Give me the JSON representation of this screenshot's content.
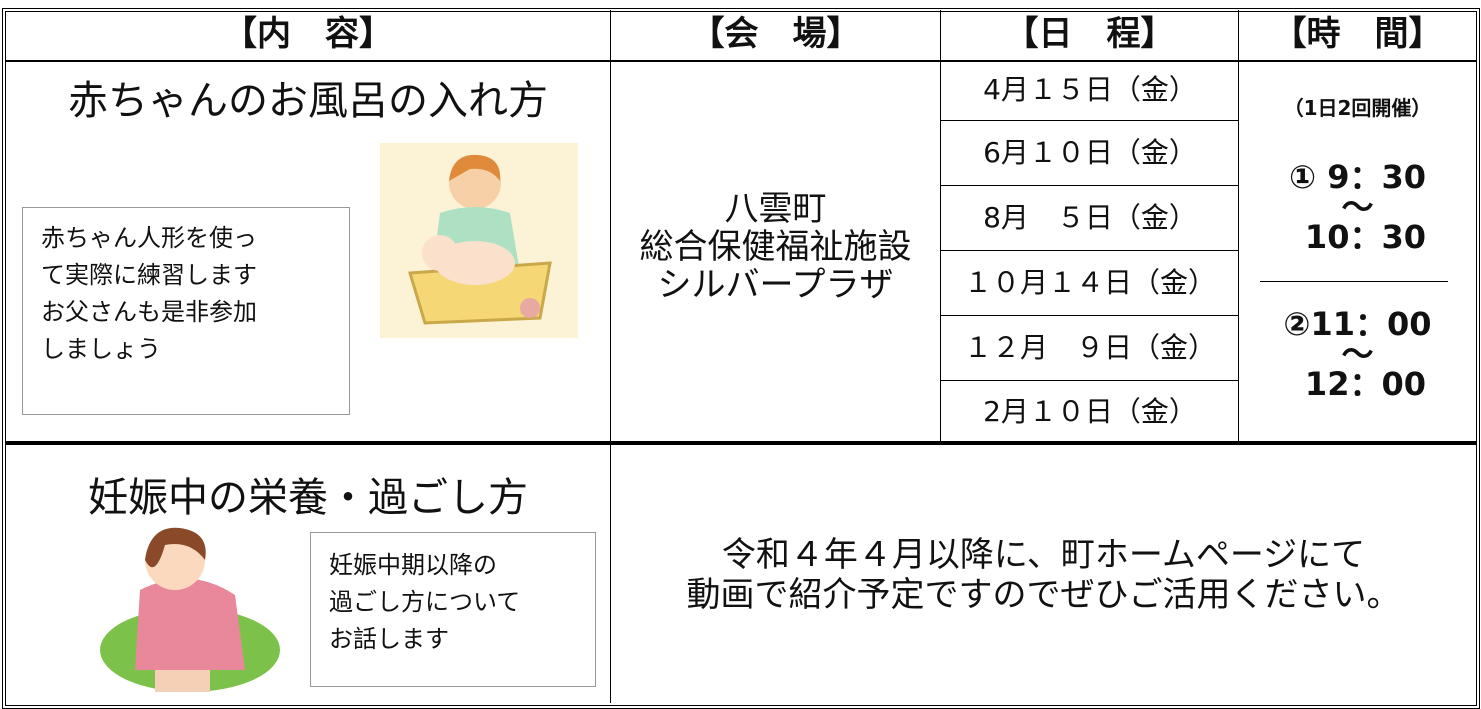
{
  "header": [
    "【内　容】",
    "【会　場】",
    "【日　程】",
    "【時　間】"
  ],
  "rows": [
    {
      "title": "赤ちゃんのお風呂の入れ方",
      "note": [
        "赤ちゃん人形を使っ",
        "て実際に練習します",
        "お父さんも是非参加",
        "しましょう"
      ],
      "venue": [
        "八雲町",
        "総合保健福祉施設",
        "シルバープラザ"
      ],
      "dates": [
        "4月１５日（金）",
        "6月１０日（金）",
        "8月　５日（金）",
        "１０月１４日（金）",
        "１２月　９日（金）",
        "2月１０日（金）"
      ],
      "time": {
        "note": "（1日2回開催）",
        "session1": [
          "① 9：30",
          "～",
          "10：30"
        ],
        "session2": [
          "②11：00",
          "～",
          "12：00"
        ]
      }
    },
    {
      "title": "妊娠中の栄養・過ごし方",
      "note": [
        "妊娠中期以降の",
        "過ごし方について",
        "お話します"
      ],
      "message": [
        "令和４年４月以降に、町ホームページにて",
        "動画で紹介予定ですのでぜひご活用ください。"
      ]
    }
  ]
}
